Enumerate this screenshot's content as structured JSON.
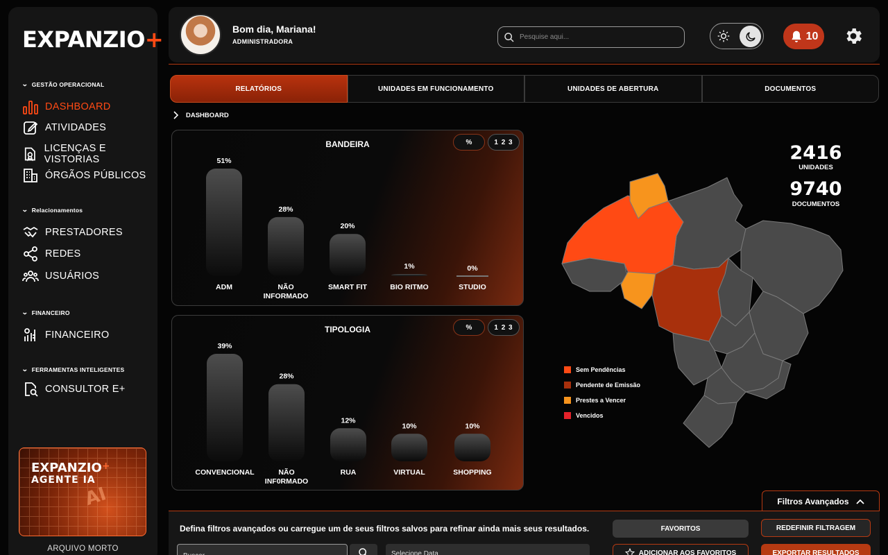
{
  "app": {
    "logo_text": "EXPANZIO",
    "logo_plus": "+"
  },
  "colors": {
    "accent": "#ff4a14",
    "sem_pendencias": "#ff4a14",
    "pendente_emissao": "#a8300c",
    "prestes_vencer": "#f7941d",
    "vencidos": "#e5222a",
    "map_default": "#4a4a4a"
  },
  "sidebar": {
    "sections": [
      {
        "title": "GESTÃO OPERACIONAL",
        "items": [
          {
            "label": "DASHBOARD",
            "icon": "bar-chart-icon",
            "active": true
          },
          {
            "label": "ATIVIDADES",
            "icon": "edit-icon"
          },
          {
            "label": "LICENÇAS E VISTORIAS",
            "icon": "license-icon"
          },
          {
            "label": "ÓRGÃOS PÚBLICOS",
            "icon": "building-icon"
          }
        ]
      },
      {
        "title": "Relacionamentos",
        "items": [
          {
            "label": "PRESTADORES",
            "icon": "handshake-icon"
          },
          {
            "label": "REDES",
            "icon": "share-icon"
          },
          {
            "label": "USUÁRIOS",
            "icon": "users-icon"
          }
        ]
      },
      {
        "title": "FINANCEIRO",
        "items": [
          {
            "label": "FINANCEIRO",
            "icon": "finance-icon"
          }
        ]
      },
      {
        "title": "FERRAMENTAS INTELIGENTES",
        "items": [
          {
            "label": "CONSULTOR E+",
            "icon": "consultant-icon"
          }
        ]
      }
    ],
    "agent_card": {
      "brand": "EXPANZIO",
      "plus": "+",
      "subtitle": "AGENTE IA",
      "art_text": "AI"
    },
    "archive_label": "ARQUIVO MORTO"
  },
  "header": {
    "greeting": "Bom dia, Mariana!",
    "role": "ADMINISTRADORA",
    "search_placeholder": "Pesquise aqui...",
    "notifications_count": "10"
  },
  "tabs": [
    "RELATÓRIOS",
    "UNIDADES EM FUNCIONAMENTO",
    "UNIDADES DE ABERTURA",
    "DOCUMENTOS"
  ],
  "breadcrumb": "DASHBOARD",
  "chart_toggle": {
    "percent": "%",
    "numeric": "1 2 3"
  },
  "chart_data": [
    {
      "type": "bar",
      "title": "BANDEIRA",
      "categories": [
        "ADM",
        "NÃO INFORMADO",
        "SMART FIT",
        "BIO RITMO",
        "STUDIO"
      ],
      "category_lines": [
        [
          "ADM"
        ],
        [
          "NÃO",
          "INFORMADO"
        ],
        [
          "SMART FIT"
        ],
        [
          "BIO RITMO"
        ],
        [
          "STUDIO"
        ]
      ],
      "values": [
        51,
        28,
        20,
        1,
        0
      ],
      "data_labels": [
        "51%",
        "28%",
        "20%",
        "1%",
        "0%"
      ],
      "unit": "%"
    },
    {
      "type": "bar",
      "title": "TIPOLOGIA",
      "categories": [
        "CONVENCIONAL",
        "NÃO INF0RMADO",
        "RUA",
        "VIRTUAL",
        "SHOPPING"
      ],
      "category_lines": [
        [
          "CONVENCIONAL"
        ],
        [
          "NÃO",
          "INF0RMADO"
        ],
        [
          "RUA"
        ],
        [
          "VIRTUAL"
        ],
        [
          "SHOPPING"
        ]
      ],
      "values": [
        39,
        28,
        12,
        10,
        10
      ],
      "data_labels": [
        "39%",
        "28%",
        "12%",
        "10%",
        "10%"
      ],
      "unit": "%"
    }
  ],
  "stats": [
    {
      "value": "2416",
      "label": "UNIDADES"
    },
    {
      "value": "9740",
      "label": "DOCUMENTOS"
    }
  ],
  "map": {
    "legend": [
      {
        "label": "Sem Pendências",
        "color": "#ff4a14"
      },
      {
        "label": "Pendente de Emissão",
        "color": "#a8300c"
      },
      {
        "label": "Prestes a Vencer",
        "color": "#f7941d"
      },
      {
        "label": "Vencidos",
        "color": "#e5222a"
      }
    ]
  },
  "filters": {
    "toggle_label": "Filtros Avançados",
    "description": "Defina filtros avançados ou carregue um de seus filtros salvos para refinar ainda mais seus resultados.",
    "favorites": "FAVORITOS",
    "reset": "REDEFINIR FILTRAGEM",
    "add_favorites": "ADICIONAR AOS FAVORITOS",
    "export": "EXPORTAR RESULTADOS",
    "search_placeholder": "Buscar",
    "date_placeholder": "Selecione Data"
  }
}
